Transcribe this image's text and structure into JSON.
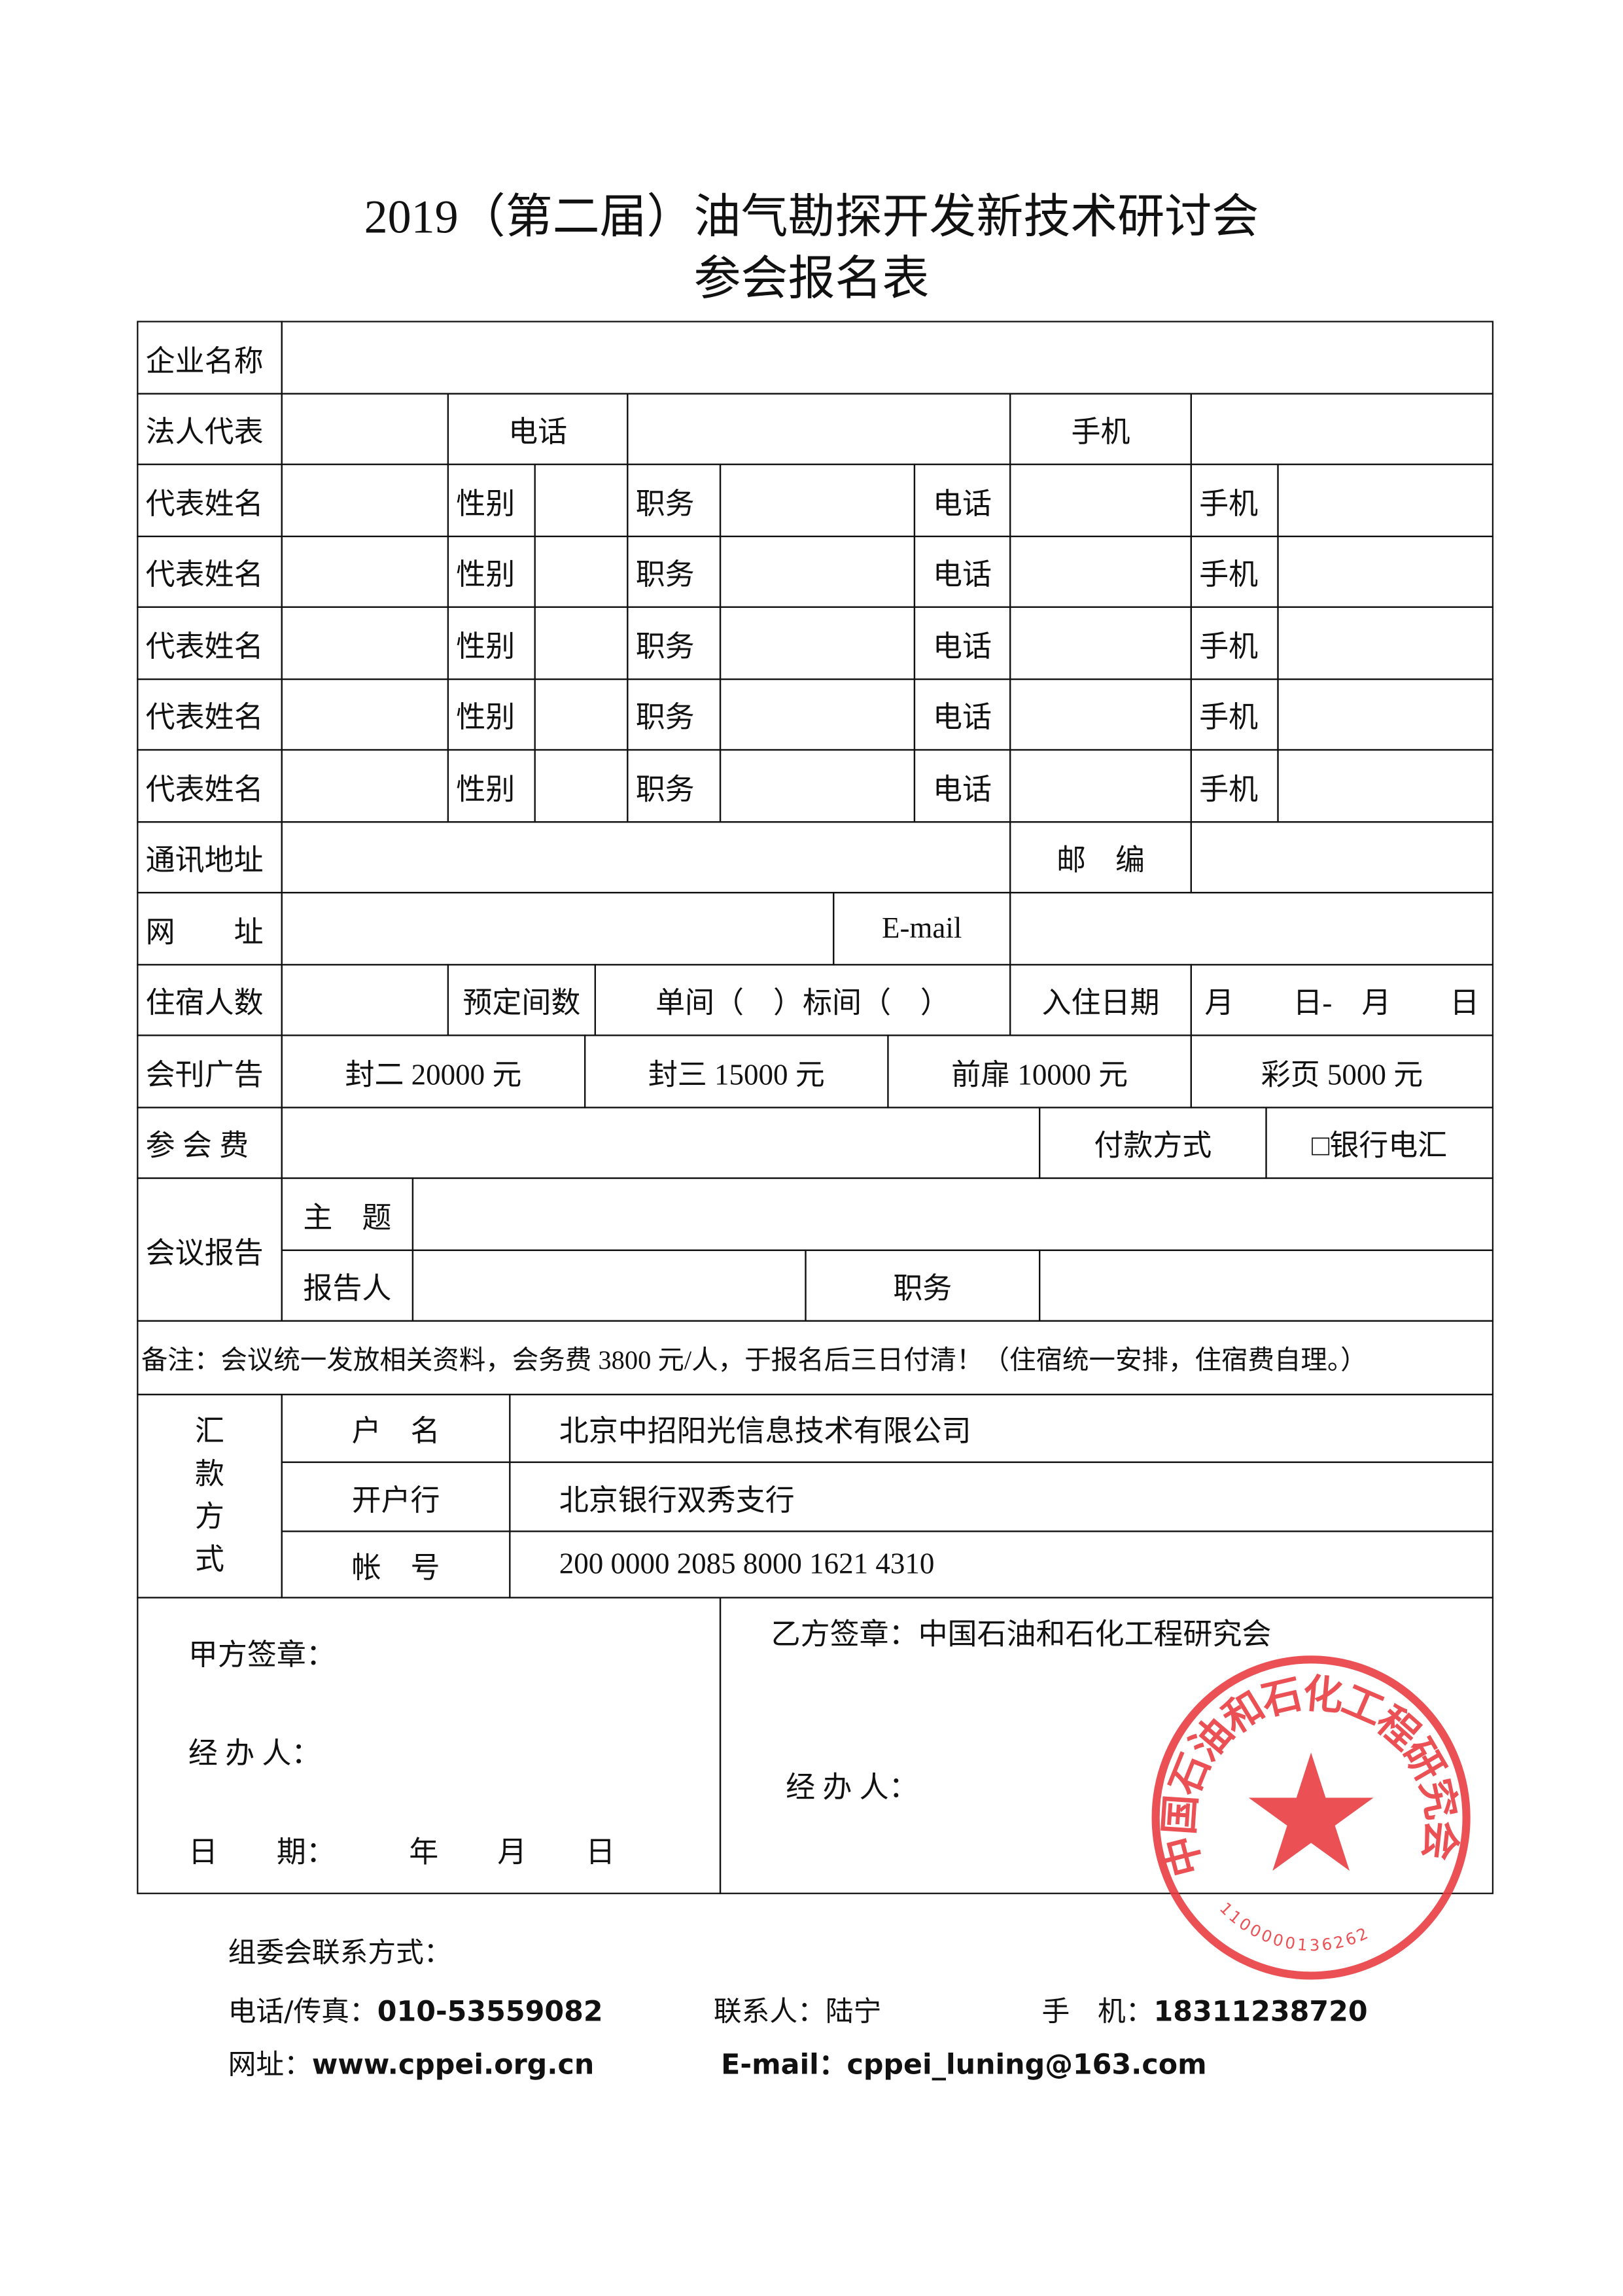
{
  "title": {
    "line1": "2019（第二届）油气勘探开发新技术研讨会",
    "line2": "参会报名表"
  },
  "company": {
    "label": "企业名称"
  },
  "legal_rep": {
    "label": "法人代表",
    "phone": "电话",
    "mobile": "手机"
  },
  "representatives": [
    {
      "name": "代表姓名",
      "gender": "性别",
      "position": "职务",
      "phone": "电话",
      "mobile": "手机"
    },
    {
      "name": "代表姓名",
      "gender": "性别",
      "position": "职务",
      "phone": "电话",
      "mobile": "手机"
    },
    {
      "name": "代表姓名",
      "gender": "性别",
      "position": "职务",
      "phone": "电话",
      "mobile": "手机"
    },
    {
      "name": "代表姓名",
      "gender": "性别",
      "position": "职务",
      "phone": "电话",
      "mobile": "手机"
    },
    {
      "name": "代表姓名",
      "gender": "性别",
      "position": "职务",
      "phone": "电话",
      "mobile": "手机"
    }
  ],
  "address": {
    "label": "通讯地址",
    "postcode": "邮　编"
  },
  "web": {
    "label": "网　　址",
    "email": "E-mail"
  },
  "lodging": {
    "label": "住宿人数",
    "rooms": "预定间数",
    "room_types": "单间（　）标间（　）",
    "checkin": "入住日期",
    "dates": "月　　日-　月　　日"
  },
  "ads": {
    "label": "会刊广告",
    "options": [
      "封二 20000 元",
      "封三 15000 元",
      "前扉 10000 元",
      "彩页 5000 元"
    ]
  },
  "fee": {
    "label": "参 会 费",
    "payment": "付款方式",
    "method": "□银行电汇"
  },
  "report": {
    "label": "会议报告",
    "topic": "主　题",
    "reporter": "报告人",
    "position": "职务"
  },
  "note": "备注：会议统一发放相关资料，会务费 3800 元/人，于报名后三日付清！（住宿统一安排，住宿费自理。）",
  "remit": {
    "label": "汇款方式",
    "rows": [
      {
        "label": "户　名",
        "value": "北京中招阳光信息技术有限公司"
      },
      {
        "label": "开户行",
        "value": "北京银行双秀支行"
      },
      {
        "label": "帐　号",
        "value": "200 0000 2085 8000 1621 4310"
      }
    ]
  },
  "sign": {
    "party_a": "甲方签章：",
    "handler_a": "经 办 人：",
    "date": "日　　期：　　　年　　月　　日",
    "party_b": "乙方签章：中国石油和石化工程研究会",
    "handler_b": "经 办 人："
  },
  "stamp": {
    "text": "中国石油和石化工程研究会",
    "number": "1100000136262",
    "color": "#e8383d"
  },
  "contact": {
    "heading": "组委会联系方式：",
    "phone_label": "电话/传真：",
    "phone": "010-53559082",
    "person_label": "联系人：",
    "person": "陆宁",
    "mobile_label": "手　机：",
    "mobile": "18311238720",
    "web_label": "网址：",
    "web": "www.cppei.org.cn",
    "email_label": "E-mail：",
    "email": "cppei_luning@163.com"
  }
}
